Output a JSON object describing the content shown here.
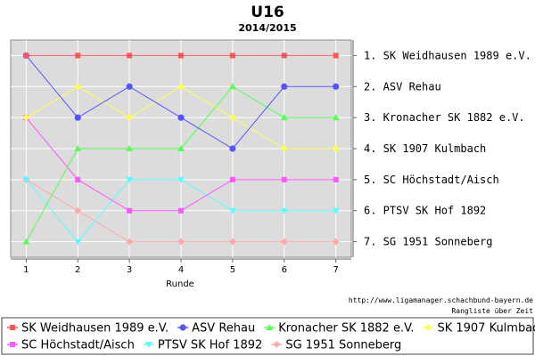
{
  "chart_data": {
    "type": "line",
    "title": "U16",
    "subtitle": "2014/2015",
    "xlabel": "Runde",
    "x": [
      1,
      2,
      3,
      4,
      5,
      6,
      7
    ],
    "xlim": [
      0.7,
      7.3
    ],
    "ylim": [
      0.5,
      7.5
    ],
    "y_inverted": true,
    "grid": true,
    "legend": "bottom",
    "rank_labels": [
      "1. SK Weidhausen 1989 e.V.",
      "2. ASV Rehau",
      "3. Kronacher SK 1882 e.V.",
      "4. SK 1907 Kulmbach",
      "5. SC Höchstadt/Aisch",
      "6. PTSV SK Hof 1892",
      "7. SG 1951 Sonneberg"
    ],
    "source_url": "http://www.ligamanager.schachbund-bayern.de",
    "source_note": "Rangliste über Zeit",
    "series": [
      {
        "name": "SK Weidhausen 1989 e.V.",
        "color": "#ff5555",
        "marker": "square",
        "values": [
          1,
          1,
          1,
          1,
          1,
          1,
          1
        ]
      },
      {
        "name": "ASV Rehau",
        "color": "#5555ff",
        "marker": "circle",
        "values": [
          1,
          3,
          2,
          3,
          4,
          2,
          2
        ]
      },
      {
        "name": "Kronacher SK 1882 e.V.",
        "color": "#55ff55",
        "marker": "triangle",
        "values": [
          7,
          4,
          4,
          4,
          2,
          3,
          3
        ]
      },
      {
        "name": "SK 1907 Kulmbach",
        "color": "#ffff55",
        "marker": "diamond",
        "values": [
          3,
          2,
          3,
          2,
          3,
          4,
          4
        ]
      },
      {
        "name": "SC Höchstadt/Aisch",
        "color": "#ff55ff",
        "marker": "square",
        "values": [
          3,
          5,
          6,
          6,
          5,
          5,
          5
        ]
      },
      {
        "name": "PTSV SK Hof 1892",
        "color": "#55ffff",
        "marker": "down-triangle",
        "values": [
          5,
          7,
          5,
          5,
          6,
          6,
          6
        ]
      },
      {
        "name": "SG 1951 Sonneberg",
        "color": "#ffaaaa",
        "marker": "diamond",
        "values": [
          5,
          6,
          7,
          7,
          7,
          7,
          7
        ]
      }
    ]
  }
}
